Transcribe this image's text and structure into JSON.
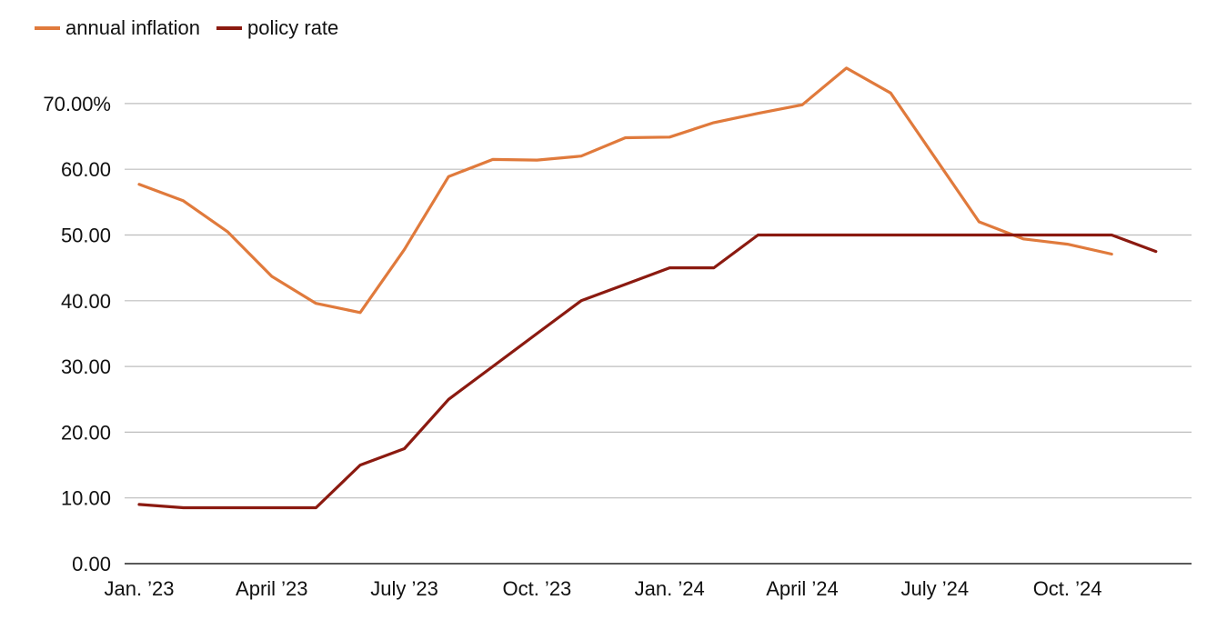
{
  "chart_data": {
    "type": "line",
    "title": "",
    "xlabel": "",
    "ylabel": "",
    "ylim": [
      0,
      75
    ],
    "yticks": [
      0,
      10,
      20,
      30,
      40,
      50,
      60,
      70
    ],
    "ytick_labels": [
      "0.00",
      "10.00",
      "20.00",
      "30.00",
      "40.00",
      "50.00",
      "60.00",
      "70.00%"
    ],
    "grid": "horizontal",
    "legend": "top-left",
    "x": [
      "2023-01",
      "2023-02",
      "2023-03",
      "2023-04",
      "2023-05",
      "2023-06",
      "2023-07",
      "2023-08",
      "2023-09",
      "2023-10",
      "2023-11",
      "2023-12",
      "2024-01",
      "2024-02",
      "2024-03",
      "2024-04",
      "2024-05",
      "2024-06",
      "2024-07",
      "2024-08",
      "2024-09",
      "2024-10",
      "2024-11",
      "2024-12"
    ],
    "xtick_labels": [
      {
        "x": "2023-01",
        "label": "Jan. ’23"
      },
      {
        "x": "2023-04",
        "label": "April ’23"
      },
      {
        "x": "2023-07",
        "label": "July ’23"
      },
      {
        "x": "2023-10",
        "label": "Oct. ’23"
      },
      {
        "x": "2024-01",
        "label": "Jan. ’24"
      },
      {
        "x": "2024-04",
        "label": "April ’24"
      },
      {
        "x": "2024-07",
        "label": "July ’24"
      },
      {
        "x": "2024-10",
        "label": "Oct. ’24"
      }
    ],
    "series": [
      {
        "name": "annual inflation",
        "color": "#e07a3c",
        "values": [
          57.7,
          55.2,
          50.5,
          43.7,
          39.6,
          38.2,
          47.8,
          58.9,
          61.5,
          61.4,
          62.0,
          64.8,
          64.9,
          67.1,
          68.5,
          69.8,
          75.4,
          71.6,
          61.8,
          52.0,
          49.4,
          48.6,
          47.1,
          null
        ]
      },
      {
        "name": "policy rate",
        "color": "#8b1a10",
        "values": [
          9.0,
          8.5,
          8.5,
          8.5,
          8.5,
          15.0,
          17.5,
          25.0,
          30.0,
          35.0,
          40.0,
          42.5,
          45.0,
          45.0,
          50.0,
          50.0,
          50.0,
          50.0,
          50.0,
          50.0,
          50.0,
          50.0,
          50.0,
          47.5
        ]
      }
    ]
  }
}
